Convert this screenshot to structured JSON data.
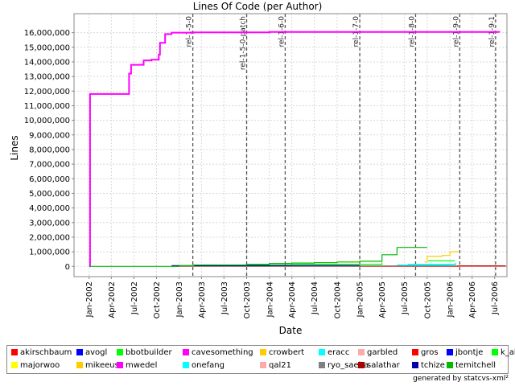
{
  "chart_data": {
    "type": "line",
    "title": "Lines Of Code (per Author)",
    "xlabel": "Date",
    "ylabel": "Lines",
    "x_axis_type": "date",
    "xlim": [
      "2001-11-01",
      "2006-08-20"
    ],
    "ylim": [
      -700000,
      17300000
    ],
    "y_ticks": [
      0,
      1000000,
      2000000,
      3000000,
      4000000,
      5000000,
      6000000,
      7000000,
      8000000,
      9000000,
      10000000,
      11000000,
      12000000,
      13000000,
      14000000,
      15000000,
      16000000
    ],
    "y_tick_labels": [
      "0",
      "1,000,000",
      "2,000,000",
      "3,000,000",
      "4,000,000",
      "5,000,000",
      "6,000,000",
      "7,000,000",
      "8,000,000",
      "9,000,000",
      "10,000,000",
      "11,000,000",
      "12,000,000",
      "13,000,000",
      "14,000,000",
      "15,000,000",
      "16,000,000"
    ],
    "x_ticks": [
      "2002-01-01",
      "2002-04-01",
      "2002-07-01",
      "2002-10-01",
      "2003-01-01",
      "2003-04-01",
      "2003-07-01",
      "2003-10-01",
      "2004-01-01",
      "2004-04-01",
      "2004-07-01",
      "2004-10-01",
      "2005-01-01",
      "2005-04-01",
      "2005-07-01",
      "2005-10-01",
      "2006-01-01",
      "2006-04-01",
      "2006-07-01"
    ],
    "x_tick_labels": [
      "Jan-2002",
      "Apr-2002",
      "Jul-2002",
      "Oct-2002",
      "Jan-2003",
      "Apr-2003",
      "Jul-2003",
      "Oct-2003",
      "Jan-2004",
      "Apr-2004",
      "Jul-2004",
      "Oct-2004",
      "Jan-2005",
      "Apr-2005",
      "Jul-2005",
      "Oct-2005",
      "Jan-2006",
      "Apr-2006",
      "Jul-2006"
    ],
    "grid": true,
    "legend_position": "bottom",
    "markers": [
      {
        "label": "rel-1-5-0",
        "date": "2003-02-25"
      },
      {
        "label": "rel-1-5-0-patch",
        "date": "2003-10-01"
      },
      {
        "label": "rel-1-6-0",
        "date": "2004-03-05"
      },
      {
        "label": "rel-1-7-0",
        "date": "2005-01-01"
      },
      {
        "label": "rel-1-8-0",
        "date": "2005-08-15"
      },
      {
        "label": "rel-1-9-0",
        "date": "2006-02-10"
      },
      {
        "label": "rel-1-9-1",
        "date": "2006-07-05"
      }
    ],
    "series": [
      {
        "name": "akirschbaum",
        "color": "#ff0000",
        "points": []
      },
      {
        "name": "avogl",
        "color": "#0000ff",
        "points": []
      },
      {
        "name": "bbotbuilder",
        "color": "#00ff00",
        "points": [
          [
            "2005-10-05",
            380000
          ],
          [
            "2005-12-01",
            380000
          ],
          [
            "2006-01-20",
            370000
          ]
        ]
      },
      {
        "name": "cavesomething",
        "color": "#ff00ff",
        "points": [
          [
            "2002-01-03",
            0
          ],
          [
            "2002-01-05",
            11800000
          ],
          [
            "2002-06-08",
            11800000
          ],
          [
            "2002-06-12",
            13200000
          ],
          [
            "2002-06-20",
            13800000
          ],
          [
            "2002-08-05",
            13800000
          ],
          [
            "2002-08-10",
            14100000
          ],
          [
            "2002-09-10",
            14150000
          ],
          [
            "2002-10-10",
            14500000
          ],
          [
            "2002-10-15",
            15300000
          ],
          [
            "2002-11-01",
            15300000
          ],
          [
            "2002-11-05",
            15900000
          ],
          [
            "2002-12-01",
            16000000
          ],
          [
            "2003-03-01",
            16020000
          ],
          [
            "2004-01-01",
            16050000
          ],
          [
            "2006-06-01",
            16050000
          ],
          [
            "2006-07-20",
            16020000
          ]
        ]
      },
      {
        "name": "crowbert",
        "color": "#ffcc00",
        "points": []
      },
      {
        "name": "eracc",
        "color": "#00ffff",
        "points": [
          [
            "2005-07-15",
            150000
          ],
          [
            "2006-01-20",
            200000
          ]
        ]
      },
      {
        "name": "garbled",
        "color": "#ffaaaa",
        "points": []
      },
      {
        "name": "gros",
        "color": "#ff0000",
        "points": [
          [
            "2002-12-15",
            10000
          ],
          [
            "2006-02-01",
            20000
          ],
          [
            "2006-08-15",
            30000
          ]
        ]
      },
      {
        "name": "jbontje",
        "color": "#0000ff",
        "points": [
          [
            "2005-07-01",
            50000
          ],
          [
            "2005-12-01",
            60000
          ]
        ]
      },
      {
        "name": "k_ahlers",
        "color": "#00ff00",
        "points": [
          [
            "2003-10-01",
            100000
          ],
          [
            "2004-04-01",
            150000
          ],
          [
            "2005-04-01",
            250000
          ]
        ]
      },
      {
        "name": "majorwoo",
        "color": "#ffff00",
        "points": [
          [
            "2004-10-01",
            300000
          ],
          [
            "2005-01-01",
            350000
          ],
          [
            "2005-03-01",
            380000
          ]
        ]
      },
      {
        "name": "mikeeusa",
        "color": "#ffcc00",
        "points": [
          [
            "2005-09-20",
            300000
          ],
          [
            "2005-10-01",
            700000
          ],
          [
            "2005-12-01",
            750000
          ],
          [
            "2006-01-01",
            1000000
          ],
          [
            "2006-02-01",
            1050000
          ]
        ]
      },
      {
        "name": "mwedel",
        "color": "#ff00ff",
        "points": []
      },
      {
        "name": "onefang",
        "color": "#00ffff",
        "points": [
          [
            "2005-06-01",
            100000
          ],
          [
            "2006-01-25",
            250000
          ]
        ]
      },
      {
        "name": "qal21",
        "color": "#ffaaaa",
        "points": []
      },
      {
        "name": "ryo_saeba",
        "color": "#808080",
        "points": [
          [
            "2002-12-01",
            20000
          ],
          [
            "2005-01-01",
            40000
          ],
          [
            "2006-01-01",
            60000
          ]
        ]
      },
      {
        "name": "salathar",
        "color": "#aa0000",
        "points": [
          [
            "2006-02-01",
            30000
          ],
          [
            "2006-08-15",
            30000
          ]
        ]
      },
      {
        "name": "tchize",
        "color": "#0000aa",
        "points": [
          [
            "2002-12-01",
            50000
          ],
          [
            "2004-01-01",
            60000
          ],
          [
            "2005-01-01",
            70000
          ]
        ]
      },
      {
        "name": "temitchell",
        "color": "#00bb00",
        "points": [
          [
            "2002-01-01",
            0
          ],
          [
            "2003-01-01",
            50000
          ],
          [
            "2003-03-01",
            100000
          ],
          [
            "2003-10-01",
            150000
          ],
          [
            "2004-01-01",
            200000
          ],
          [
            "2004-04-01",
            230000
          ],
          [
            "2004-07-01",
            260000
          ],
          [
            "2004-10-01",
            300000
          ],
          [
            "2005-01-01",
            350000
          ],
          [
            "2005-04-01",
            800000
          ],
          [
            "2005-06-01",
            1300000
          ],
          [
            "2005-10-01",
            1300000
          ]
        ]
      }
    ]
  },
  "legend": {
    "entries": [
      {
        "name": "akirschbaum",
        "color": "#ff0000"
      },
      {
        "name": "avogl",
        "color": "#0000ff"
      },
      {
        "name": "bbotbuilder",
        "color": "#00ff00"
      },
      {
        "name": "cavesomething",
        "color": "#ff00ff"
      },
      {
        "name": "crowbert",
        "color": "#ffcc00"
      },
      {
        "name": "eracc",
        "color": "#00ffff"
      },
      {
        "name": "garbled",
        "color": "#ffaaaa"
      },
      {
        "name": "gros",
        "color": "#ff0000"
      },
      {
        "name": "jbontje",
        "color": "#0000ff"
      },
      {
        "name": "k_ahlers",
        "color": "#00ff00"
      },
      {
        "name": "majorwoo",
        "color": "#ffff00"
      },
      {
        "name": "mikeeusa",
        "color": "#ffcc00"
      },
      {
        "name": "mwedel",
        "color": "#ff00ff"
      },
      {
        "name": "onefang",
        "color": "#00ffff"
      },
      {
        "name": "qal21",
        "color": "#ffaaaa"
      },
      {
        "name": "ryo_saeba",
        "color": "#808080"
      },
      {
        "name": "salathar",
        "color": "#aa0000"
      },
      {
        "name": "tchize",
        "color": "#0000aa"
      },
      {
        "name": "temitchell",
        "color": "#00bb00"
      }
    ]
  },
  "footer": {
    "text": "generated by statcvs-xml²"
  }
}
